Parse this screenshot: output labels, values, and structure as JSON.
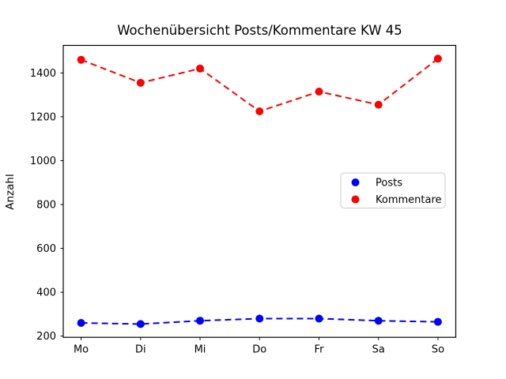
{
  "figure": {
    "background": "#ffffff",
    "frame_color": "#000000"
  },
  "chart_data": {
    "type": "line",
    "title": "Wochenübersicht Posts/Kommentare KW 45",
    "xlabel": "",
    "ylabel": "Anzahl",
    "categories": [
      "Mo",
      "Di",
      "Mi",
      "Do",
      "Fr",
      "Sa",
      "So"
    ],
    "series": [
      {
        "name": "Posts",
        "color": "#0000ff",
        "linestyle": "dashed",
        "marker": "circle",
        "values": [
          260,
          255,
          270,
          280,
          280,
          270,
          265
        ]
      },
      {
        "name": "Kommentare",
        "color": "#ff0000",
        "linestyle": "dashed",
        "marker": "circle",
        "values": [
          1460,
          1355,
          1420,
          1225,
          1315,
          1255,
          1465
        ]
      }
    ],
    "yticks": [
      200,
      400,
      600,
      800,
      1000,
      1200,
      1400
    ],
    "ylim": [
      194.5,
      1525.5
    ],
    "grid": false,
    "legend": {
      "position": "center-right",
      "border_color": "#cccccc",
      "background": "#ffffff",
      "labels": [
        "Posts",
        "Kommentare"
      ]
    }
  }
}
